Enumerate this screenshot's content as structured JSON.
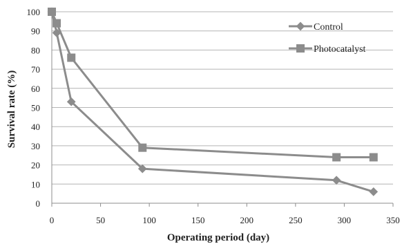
{
  "chart_data": {
    "type": "line",
    "title": "",
    "xlabel": "Operating period (day)",
    "ylabel": "Survival rate (%)",
    "xlim": [
      0,
      350
    ],
    "ylim": [
      0,
      100
    ],
    "x_ticks": [
      "0",
      "50",
      "100",
      "150",
      "200",
      "250",
      "300",
      "350"
    ],
    "y_ticks": [
      "0",
      "10",
      "20",
      "30",
      "40",
      "50",
      "60",
      "70",
      "80",
      "90",
      "100"
    ],
    "grid": "horizontal",
    "legend": "top-right",
    "series": [
      {
        "name": "Control",
        "marker": "diamond",
        "color": "#8c8c8c",
        "points": [
          [
            0,
            100
          ],
          [
            5,
            89
          ],
          [
            20,
            53
          ],
          [
            93,
            18
          ],
          [
            292,
            12
          ],
          [
            330,
            6
          ]
        ]
      },
      {
        "name": "Photocatalyst",
        "marker": "square",
        "color": "#8c8c8c",
        "points": [
          [
            0,
            100
          ],
          [
            5,
            94
          ],
          [
            20,
            76
          ],
          [
            93,
            29
          ],
          [
            292,
            24
          ],
          [
            330,
            24
          ]
        ]
      }
    ]
  }
}
